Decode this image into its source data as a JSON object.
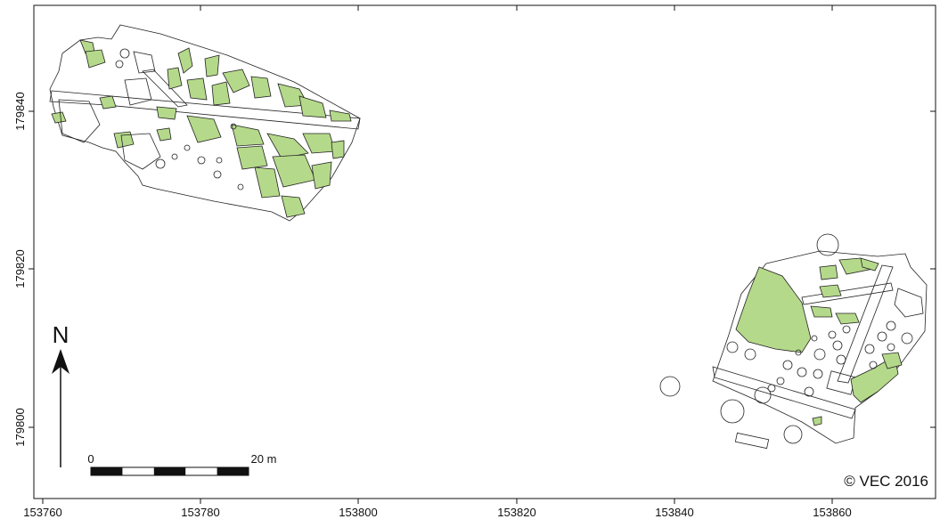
{
  "map": {
    "x_ticks": [
      "153760",
      "153780",
      "153800",
      "153820",
      "153840",
      "153860"
    ],
    "y_ticks": [
      "179840",
      "179820",
      "179800"
    ],
    "north_label": "N",
    "scale_bar": {
      "start_label": "0",
      "end_label": "20 m",
      "segments": 5
    },
    "credit": "© VEC 2016",
    "colors": {
      "feature_fill": "#b5d98a",
      "stroke": "#222222",
      "background": "#ffffff"
    }
  }
}
